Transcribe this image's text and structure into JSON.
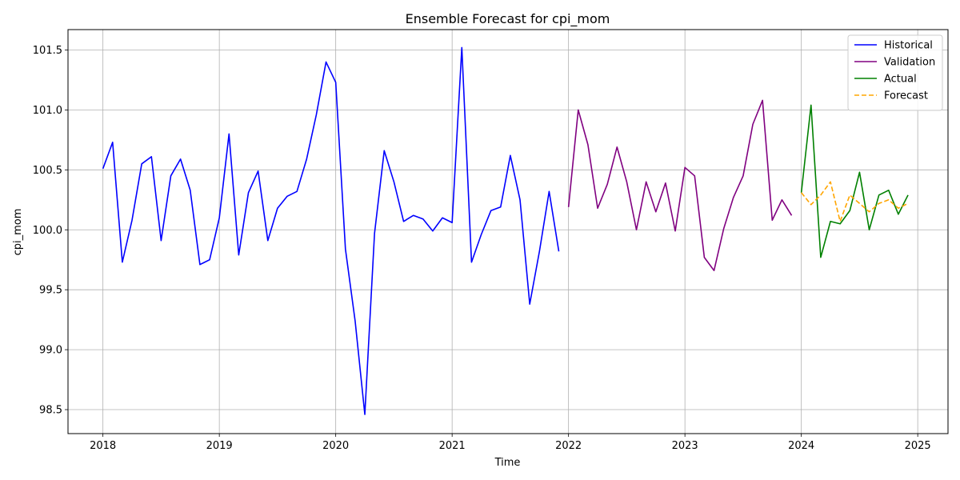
{
  "chart_data": {
    "type": "line",
    "title": "Ensemble Forecast for cpi_mom",
    "xlabel": "Time",
    "ylabel": "cpi_mom",
    "xlim": [
      2017.7,
      2025.26
    ],
    "ylim": [
      98.3,
      101.67
    ],
    "xticks": [
      2018,
      2019,
      2020,
      2021,
      2022,
      2023,
      2024,
      2025
    ],
    "yticks": [
      98.5,
      99.0,
      99.5,
      100.0,
      100.5,
      101.0,
      101.5
    ],
    "xtick_labels": [
      "2018",
      "2019",
      "2020",
      "2021",
      "2022",
      "2023",
      "2024",
      "2025"
    ],
    "ytick_labels": [
      "98.5",
      "99.0",
      "99.5",
      "100.0",
      "100.5",
      "101.0",
      "101.5"
    ],
    "grid": true,
    "legend_position": "top-right",
    "series": [
      {
        "name": "Historical",
        "color": "#0000ff",
        "style": "solid",
        "start": [
          2018,
          1
        ],
        "values": [
          100.51,
          100.73,
          99.73,
          100.08,
          100.55,
          100.61,
          99.91,
          100.45,
          100.59,
          100.33,
          99.71,
          99.75,
          100.1,
          100.8,
          99.79,
          100.31,
          100.49,
          99.91,
          100.18,
          100.28,
          100.32,
          100.59,
          100.96,
          101.4,
          101.23,
          99.84,
          99.24,
          98.46,
          99.97,
          100.66,
          100.4,
          100.07,
          100.12,
          100.09,
          99.99,
          100.1,
          100.06,
          101.52,
          99.73,
          99.96,
          100.16,
          100.19,
          100.62,
          100.25,
          99.38,
          99.82,
          100.32,
          99.82
        ]
      },
      {
        "name": "Validation",
        "color": "#800080",
        "style": "solid",
        "start": [
          2022,
          1
        ],
        "values": [
          100.19,
          101.0,
          100.71,
          100.18,
          100.38,
          100.69,
          100.4,
          100.0,
          100.4,
          100.15,
          100.39,
          99.99,
          100.52,
          100.45,
          99.77,
          99.66,
          100.01,
          100.27,
          100.45,
          100.88,
          101.08,
          100.08,
          100.25,
          100.12
        ]
      },
      {
        "name": "Actual",
        "color": "#008000",
        "style": "solid",
        "start": [
          2024,
          1
        ],
        "values": [
          100.31,
          101.04,
          99.77,
          100.07,
          100.05,
          100.16,
          100.48,
          100.0,
          100.29,
          100.33,
          100.13,
          100.29
        ]
      },
      {
        "name": "Forecast",
        "color": "#ffa500",
        "style": "dashed",
        "start": [
          2024,
          1
        ],
        "values": [
          100.31,
          100.21,
          100.29,
          100.4,
          100.07,
          100.29,
          100.22,
          100.15,
          100.22,
          100.25,
          100.18,
          100.22
        ]
      }
    ]
  }
}
